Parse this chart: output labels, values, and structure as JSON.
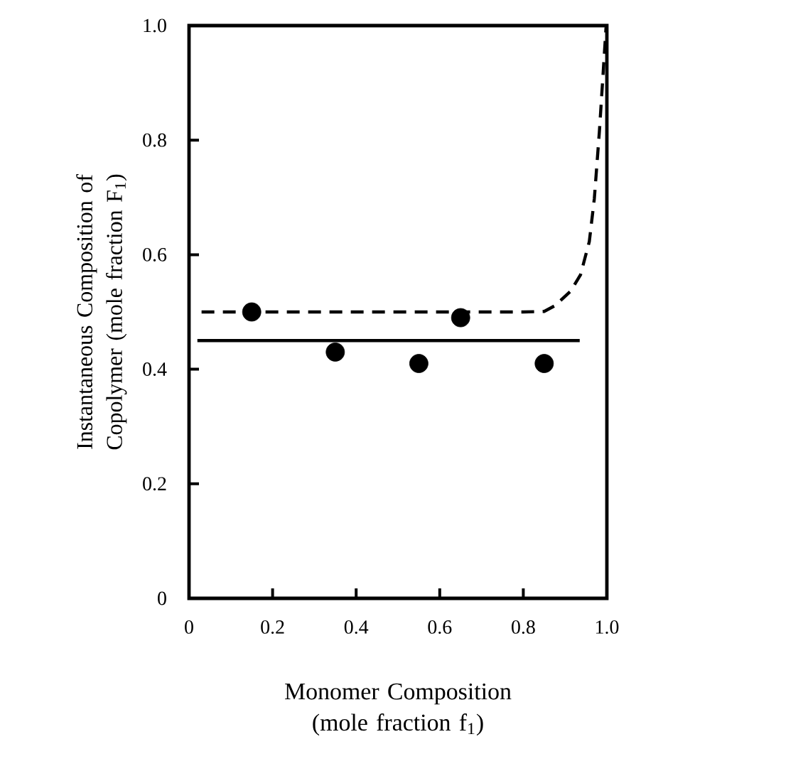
{
  "chart_data": {
    "type": "scatter",
    "xlabel": "Monomer Composition (mole fraction f$_{1}$)",
    "ylabel": "Instantaneous Composition of Copolymer (mole fraction F$_{1}$)",
    "xlim": [
      0,
      1
    ],
    "ylim": [
      0,
      1
    ],
    "xticks": [
      0,
      0.2,
      0.4,
      0.6,
      0.8,
      {
        "value": 1,
        "label": "1.0"
      }
    ],
    "yticks": [
      0,
      0.2,
      0.4,
      0.6,
      0.8,
      {
        "value": 1,
        "label": "1.0"
      }
    ],
    "grid": false,
    "marker": "circle",
    "series": [
      {
        "color": "#000000",
        "x": [
          0.15,
          0.35,
          0.55,
          0.65,
          0.85
        ],
        "values": [
          0.5,
          0.43,
          0.41,
          0.49,
          0.41
        ]
      },
      {
        "type": "line",
        "color": "#000000",
        "line_style": "solid",
        "marker": "none",
        "x": [
          0.02,
          0.935
        ],
        "values": [
          0.45,
          0.45
        ]
      },
      {
        "type": "line",
        "color": "#000000",
        "line_style": "dashed",
        "marker": "none",
        "x": [
          0.03,
          0.2,
          0.4,
          0.6,
          0.8,
          0.85,
          0.876,
          0.913,
          0.937,
          0.958,
          0.97,
          0.982,
          0.99,
          0.998
        ],
        "values": [
          0.5,
          0.5,
          0.5,
          0.5,
          0.5,
          0.501,
          0.511,
          0.536,
          0.565,
          0.623,
          0.698,
          0.814,
          0.905,
          0.997
        ]
      }
    ]
  }
}
